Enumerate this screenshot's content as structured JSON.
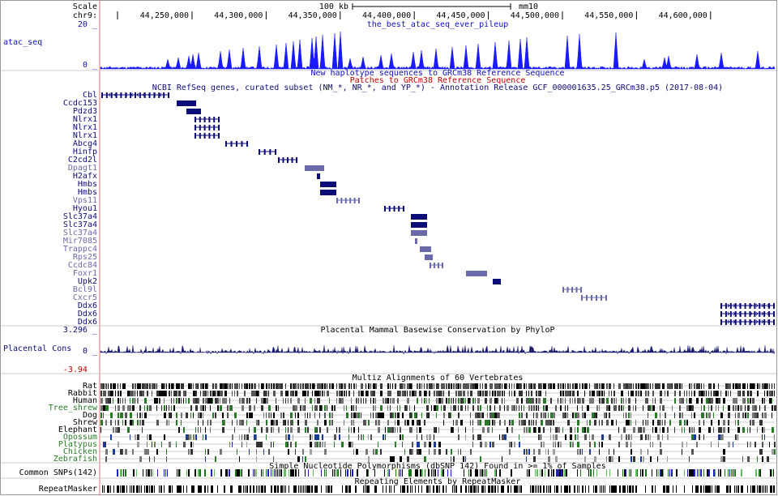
{
  "ruler": {
    "scale_label": "Scale",
    "chrom_label": "chr9:",
    "scale_bar": "100 kb",
    "assembly": "mm10",
    "positions": [
      "44,250,000",
      "44,300,000",
      "44,350,000",
      "44,400,000",
      "44,450,000",
      "44,500,000",
      "44,550,000",
      "44,600,000"
    ]
  },
  "tracks": {
    "atac": {
      "name": "atac_seq",
      "title": "the_best_atac_seq_ever_pileup",
      "max_label": "20 _",
      "min_label": "0 _"
    },
    "haplotypes": {
      "title": "New haplotype sequences to GRCm38 Reference Sequence"
    },
    "patches": {
      "title": "Patches to GRCm38 Reference Sequence"
    },
    "refseq": {
      "title": "NCBI RefSeq genes, curated subset (NM_*, NR_*, and YP_*) - Annotation Release GCF_000001635.25_GRCm38.p5 (2017-08-04)",
      "genes": [
        "Cbl",
        "Ccdc153",
        "Pdzd3",
        "Nlrx1",
        "Nlrx1",
        "Nlrx1",
        "Abcg4",
        "Hinfp",
        "C2cd2l",
        "Dpagt1",
        "H2afx",
        "Hmbs",
        "Hmbs",
        "Vps11",
        "Hyou1",
        "Slc37a4",
        "Slc37a4",
        "Slc37a4",
        "Mir7085",
        "Trappc4",
        "Rps25",
        "Ccdc84",
        "Foxr1",
        "Upk2",
        "Bcl9l",
        "Cxcr5",
        "Ddx6",
        "Ddx6",
        "Ddx6"
      ]
    },
    "phylop": {
      "title": "Placental Mammal Basewise Conservation by PhyloP",
      "name": "Placental Cons",
      "max_label": "3.296 _",
      "zero_label": "0 _",
      "min_label": "-3.94 _"
    },
    "multiz": {
      "title": "Multiz Alignments of 60 Vertebrates",
      "species": [
        "Rat",
        "Rabbit",
        "Human",
        "Tree_shrew",
        "Dog",
        "Shrew",
        "Elephant",
        "Opossum",
        "Platypus",
        "Chicken",
        "Zebrafish"
      ]
    },
    "snps": {
      "name": "Common SNPs(142)",
      "title": "Simple Nucleotide Polymorphisms (dbSNP 142) Found in >= 1% of Samples"
    },
    "repeatmasker": {
      "name": "RepeatMasker",
      "title": "Repeating Elements by RepeatMasker"
    }
  }
}
